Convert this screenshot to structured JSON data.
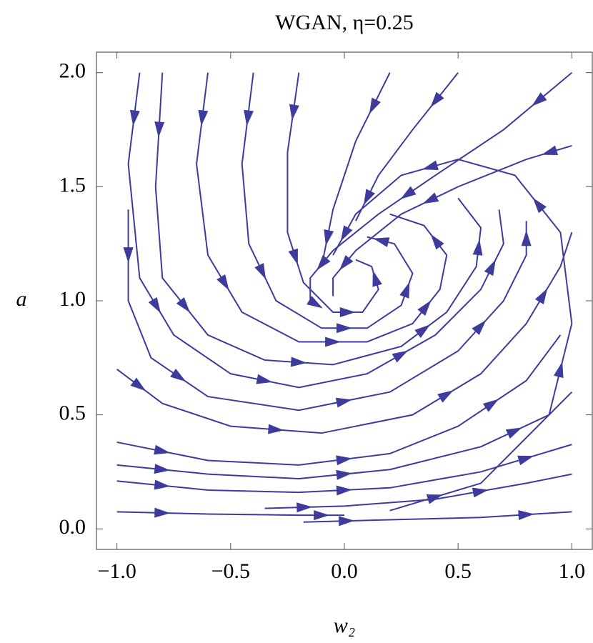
{
  "chart_data": {
    "type": "stream",
    "title": "WGAN, η=0.25",
    "x_label": "w₂",
    "y_label": "a",
    "color": "#3d3b9c",
    "xlim": [
      -1.09,
      1.09
    ],
    "ylim": [
      -0.09,
      2.09
    ],
    "xticks": [
      {
        "value": -1,
        "label": "−1.0"
      },
      {
        "value": -0.5,
        "label": "−0.5"
      },
      {
        "value": 0,
        "label": "0.0"
      },
      {
        "value": 0.5,
        "label": "0.5"
      },
      {
        "value": 1,
        "label": "1.0"
      }
    ],
    "yticks": [
      {
        "value": 0,
        "label": "0.0"
      },
      {
        "value": 0.5,
        "label": "0.5"
      },
      {
        "value": 1,
        "label": "1.0"
      },
      {
        "value": 1.5,
        "label": "1.5"
      },
      {
        "value": 2,
        "label": "2.0"
      }
    ],
    "streamlines": [
      {
        "x": [
          -1,
          -0.6,
          -0.2,
          0.0
        ],
        "y": [
          0.075,
          0.065,
          0.06,
          0.06
        ]
      },
      {
        "x": [
          -0.18,
          0.2,
          0.6,
          1.0
        ],
        "y": [
          0.03,
          0.04,
          0.05,
          0.075
        ]
      },
      {
        "x": [
          -0.35,
          0,
          0.4,
          0.8,
          1.0
        ],
        "y": [
          0.09,
          0.1,
          0.13,
          0.2,
          0.24
        ]
      },
      {
        "x": [
          -1,
          -0.6,
          -0.2,
          0.2,
          0.6,
          1.0
        ],
        "y": [
          0.21,
          0.17,
          0.16,
          0.18,
          0.25,
          0.37
        ]
      },
      {
        "x": [
          -1,
          -0.6,
          -0.2,
          0.2,
          0.6,
          0.9,
          1.0
        ],
        "y": [
          0.28,
          0.24,
          0.22,
          0.26,
          0.36,
          0.5,
          0.6
        ]
      },
      {
        "x": [
          -1,
          -0.6,
          -0.2,
          0.2,
          0.5,
          0.8,
          0.95
        ],
        "y": [
          0.38,
          0.3,
          0.28,
          0.33,
          0.45,
          0.65,
          0.85
        ]
      },
      {
        "x": [
          -1,
          -0.8,
          -0.5,
          -0.1,
          0.3,
          0.6,
          0.8,
          0.95,
          1.0
        ],
        "y": [
          0.7,
          0.55,
          0.45,
          0.42,
          0.5,
          0.68,
          0.9,
          1.15,
          1.3
        ]
      },
      {
        "x": [
          -0.95,
          -0.95,
          -0.85,
          -0.6,
          -0.2,
          0.2,
          0.5,
          0.7,
          0.8,
          0.8
        ],
        "y": [
          1.4,
          1.0,
          0.75,
          0.58,
          0.52,
          0.6,
          0.78,
          1.0,
          1.2,
          1.35
        ]
      },
      {
        "x": [
          -0.9,
          -0.95,
          -0.9,
          -0.75,
          -0.5,
          -0.2,
          0.1,
          0.4,
          0.6,
          0.7,
          0.68
        ],
        "y": [
          2.0,
          1.6,
          1.1,
          0.85,
          0.68,
          0.62,
          0.68,
          0.85,
          1.05,
          1.25,
          1.4
        ]
      },
      {
        "x": [
          -0.8,
          -0.83,
          -0.8,
          -0.6,
          -0.35,
          -0.05,
          0.25,
          0.45,
          0.58,
          0.6,
          0.5
        ],
        "y": [
          2.0,
          1.5,
          1.1,
          0.85,
          0.74,
          0.72,
          0.8,
          0.95,
          1.15,
          1.32,
          1.45
        ]
      },
      {
        "x": [
          -0.6,
          -0.65,
          -0.6,
          -0.45,
          -0.2,
          0.1,
          0.3,
          0.42,
          0.45,
          0.35,
          0.2
        ],
        "y": [
          2.0,
          1.6,
          1.2,
          0.95,
          0.82,
          0.82,
          0.9,
          1.05,
          1.2,
          1.33,
          1.38
        ]
      },
      {
        "x": [
          -0.4,
          -0.45,
          -0.42,
          -0.3,
          -0.1,
          0.1,
          0.25,
          0.3,
          0.22,
          0.1
        ],
        "y": [
          2.0,
          1.6,
          1.25,
          1.0,
          0.88,
          0.88,
          0.98,
          1.12,
          1.25,
          1.28
        ]
      },
      {
        "x": [
          -0.2,
          -0.25,
          -0.25,
          -0.18,
          -0.05,
          0.08,
          0.15,
          0.12,
          0.05
        ],
        "y": [
          2.0,
          1.65,
          1.3,
          1.08,
          0.95,
          0.95,
          1.05,
          1.15,
          1.18
        ]
      },
      {
        "x": [
          1.0,
          0.7,
          0.4,
          0.15,
          -0.05,
          -0.15,
          -0.15,
          -0.1
        ],
        "y": [
          2.0,
          1.75,
          1.55,
          1.38,
          1.22,
          1.1,
          1.0,
          0.97
        ]
      },
      {
        "x": [
          1.0,
          0.8,
          0.5,
          0.25,
          0.05,
          -0.05,
          -0.05
        ],
        "y": [
          1.68,
          1.62,
          1.5,
          1.38,
          1.22,
          1.1,
          1.02
        ]
      },
      {
        "x": [
          0.2,
          0.6,
          0.9,
          1.0,
          0.95,
          0.75,
          0.5,
          0.25,
          0.05,
          -0.05
        ],
        "y": [
          0.08,
          0.2,
          0.5,
          0.9,
          1.3,
          1.55,
          1.62,
          1.55,
          1.38,
          1.2
        ]
      },
      {
        "x": [
          0.2,
          0.05,
          -0.05,
          -0.1
        ],
        "y": [
          2.0,
          1.7,
          1.4,
          1.15
        ]
      },
      {
        "x": [
          0.5,
          0.3,
          0.15,
          0.05
        ],
        "y": [
          2.0,
          1.75,
          1.55,
          1.35
        ]
      }
    ]
  }
}
